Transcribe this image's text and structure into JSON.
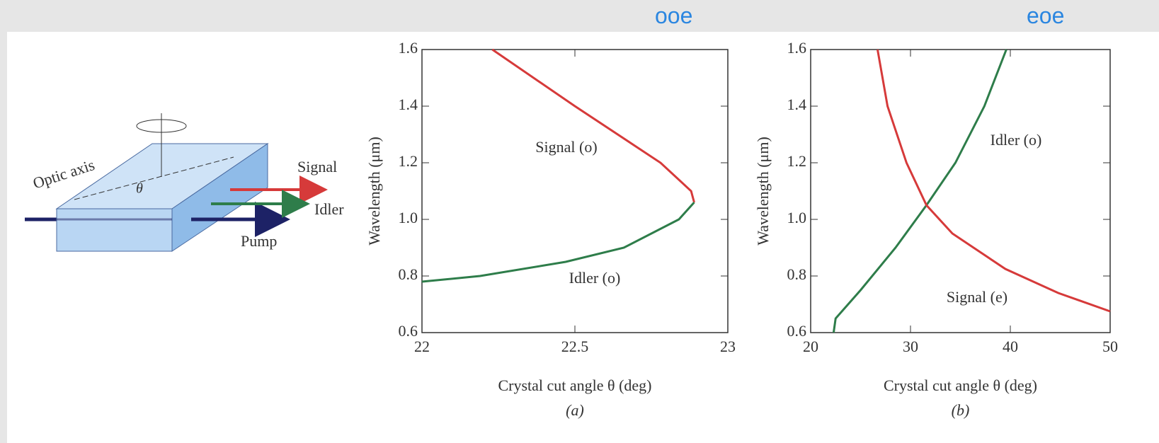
{
  "header": {
    "left": "ooe",
    "right": "eoe"
  },
  "diagram": {
    "optic_axis": "Optic axis",
    "theta": "θ",
    "signal": "Signal",
    "idler": "Idler",
    "pump": "Pump"
  },
  "chart_data": [
    {
      "type": "line",
      "caption": "(a)",
      "xlabel": "Crystal cut angle θ (deg)",
      "ylabel": "Wavelength (μm)",
      "xlim": [
        22,
        23
      ],
      "xticks": [
        22,
        22.5,
        23
      ],
      "ylim": [
        0.6,
        1.6
      ],
      "yticks": [
        0.6,
        0.8,
        {
          "value": 1,
          "label": "1.0"
        },
        1.2,
        1.4,
        1.6
      ],
      "series": [
        {
          "name": "Signal (o)",
          "color": "#d63a3a",
          "x": [
            22.23,
            22.5,
            22.78,
            22.88,
            22.89
          ],
          "values": [
            1.6,
            1.4,
            1.2,
            1.1,
            1.06
          ]
        },
        {
          "name": "Idler (o)",
          "color": "#2e7d4a",
          "x": [
            22.89,
            22.84,
            22.66,
            22.47,
            22.19,
            22.0
          ],
          "values": [
            1.06,
            1.0,
            0.9,
            0.85,
            0.8,
            0.78
          ]
        }
      ]
    },
    {
      "type": "line",
      "caption": "(b)",
      "xlabel": "Crystal cut angle θ (deg)",
      "ylabel": "Wavelength (μm)",
      "xlim": [
        20,
        50
      ],
      "xticks": [
        20,
        30,
        40,
        50
      ],
      "ylim": [
        0.6,
        1.6
      ],
      "yticks": [
        0.6,
        0.8,
        {
          "value": 1,
          "label": "1.0"
        },
        1.2,
        1.4,
        1.6
      ],
      "series": [
        {
          "name": "Idler (o)",
          "color": "#2e7d4a",
          "x": [
            22.3,
            22.5,
            25,
            28.5,
            31.6,
            34.5,
            37.4,
            39.6
          ],
          "values": [
            0.6,
            0.65,
            0.75,
            0.9,
            1.05,
            1.2,
            1.4,
            1.6
          ]
        },
        {
          "name": "Signal (e)",
          "color": "#d63a3a",
          "x": [
            26.7,
            27.7,
            29.6,
            31.6,
            34.2,
            39.5,
            44.8,
            50
          ],
          "values": [
            1.6,
            1.4,
            1.2,
            1.05,
            0.95,
            0.825,
            0.74,
            0.675
          ]
        }
      ]
    }
  ]
}
